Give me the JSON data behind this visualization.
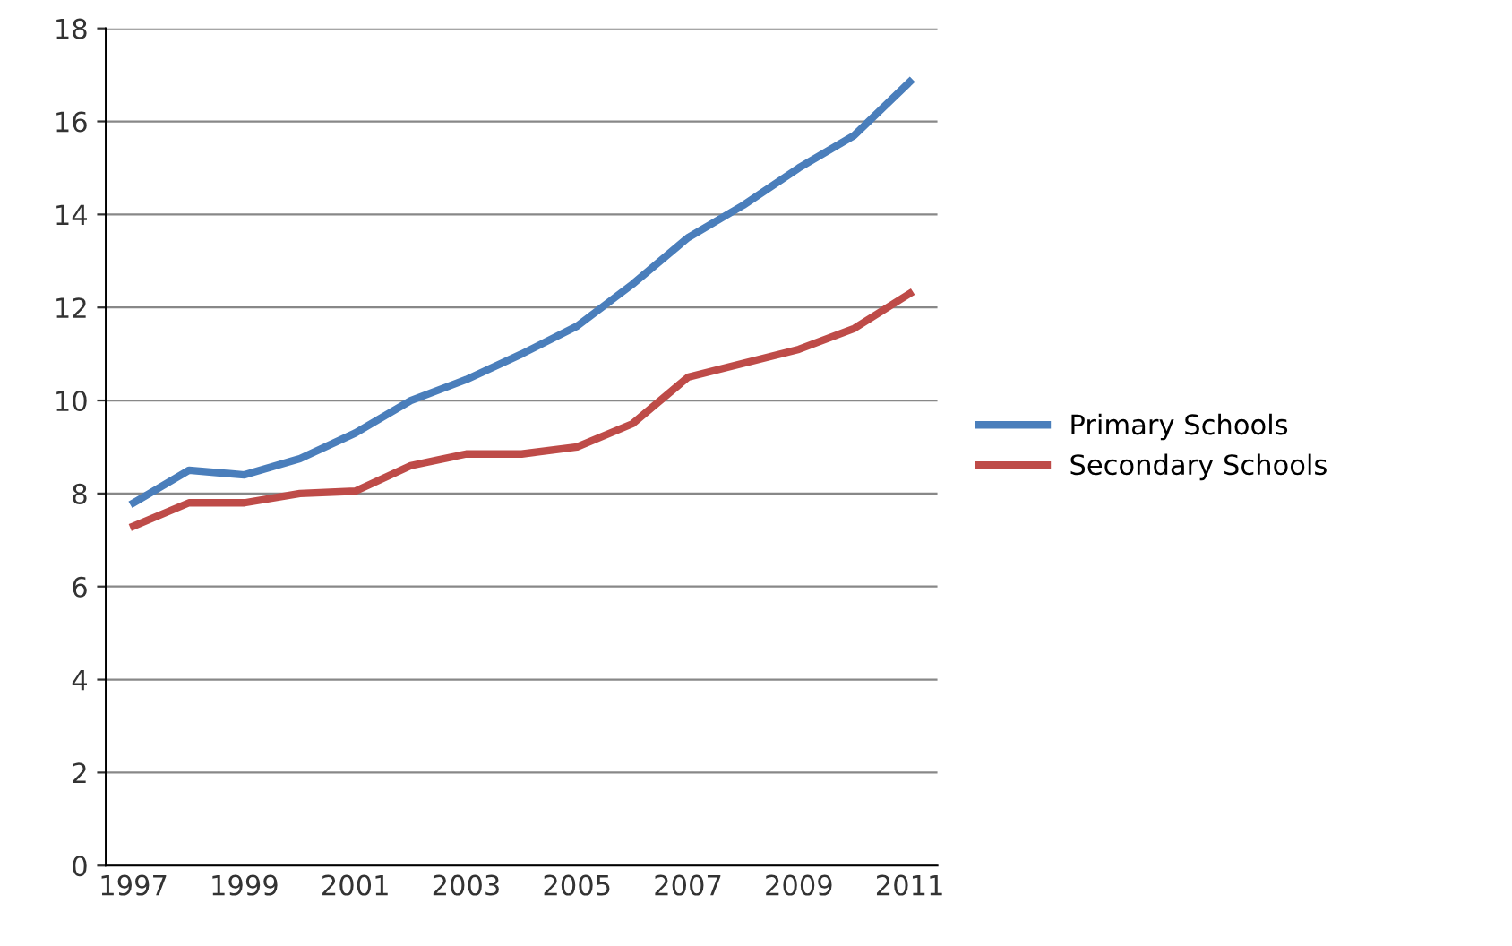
{
  "chart_data": {
    "type": "line",
    "categories": [
      "1997",
      null,
      "1999",
      null,
      "2001",
      null,
      "2003",
      null,
      "2005",
      null,
      "2007",
      null,
      "2009",
      null,
      "2011"
    ],
    "series": [
      {
        "name": "Primary Schools",
        "color": "#4a7ebb",
        "values": [
          7.8,
          8.5,
          8.4,
          8.75,
          9.3,
          10.0,
          10.45,
          11.0,
          11.6,
          12.5,
          13.5,
          14.2,
          15.0,
          15.7,
          16.85
        ]
      },
      {
        "name": "Secondary Schools",
        "color": "#be4b48",
        "values": [
          7.3,
          7.8,
          7.8,
          8.0,
          8.05,
          8.6,
          8.85,
          8.85,
          9.0,
          9.5,
          10.5,
          10.8,
          11.1,
          11.55,
          12.3
        ]
      }
    ],
    "ylim": [
      0,
      18
    ],
    "yticks": [
      0,
      2,
      4,
      6,
      8,
      10,
      12,
      14,
      16,
      18
    ],
    "grid": "y",
    "legend": "right",
    "marker": "none",
    "line_style": "solid"
  }
}
